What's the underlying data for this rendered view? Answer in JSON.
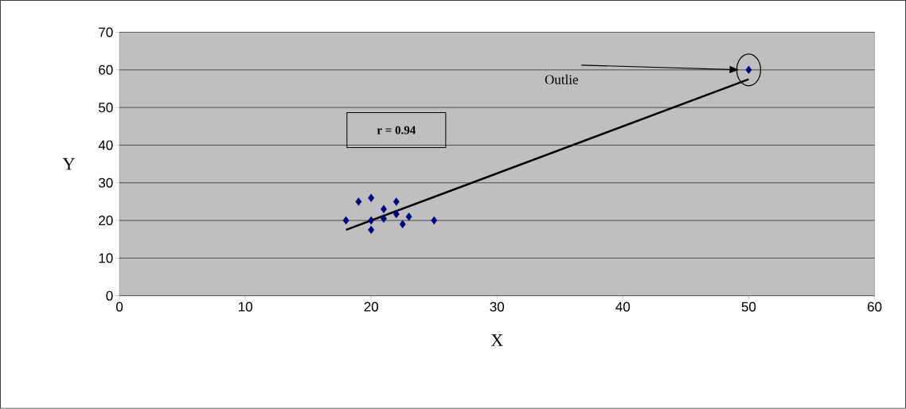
{
  "chart_data": {
    "type": "scatter",
    "xlabel": "X",
    "ylabel": "Y",
    "xlim": [
      0,
      60
    ],
    "ylim": [
      0,
      70
    ],
    "xticks": [
      0,
      10,
      20,
      30,
      40,
      50,
      60
    ],
    "yticks": [
      0,
      10,
      20,
      30,
      40,
      50,
      60,
      70
    ],
    "grid": "y",
    "marker": "diamond",
    "series": [
      {
        "color": "#000080",
        "x": [
          18,
          19,
          20,
          20,
          20,
          21,
          21,
          22,
          22,
          22.5,
          23,
          25,
          50
        ],
        "values": [
          20,
          25,
          26,
          20,
          17.5,
          23,
          20.5,
          25,
          21.7,
          19,
          21,
          20,
          60
        ]
      },
      {
        "type": "line",
        "color": "#000000",
        "marker": "none",
        "x": [
          18,
          50
        ],
        "values": [
          17.5,
          57.5
        ]
      }
    ],
    "annotations": [
      "Outlie",
      "r = 0.94"
    ]
  }
}
